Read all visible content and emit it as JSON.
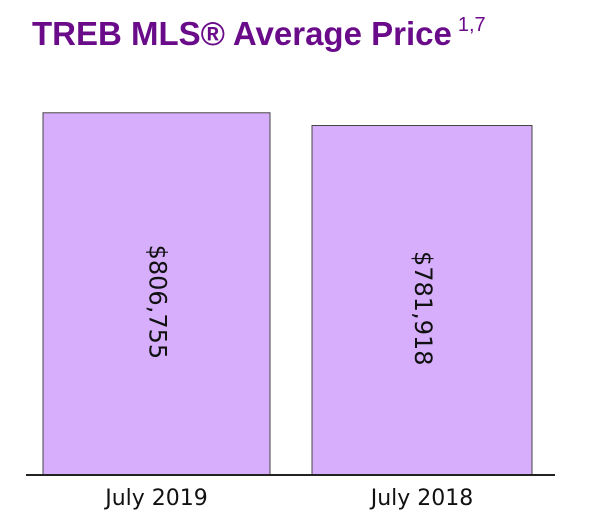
{
  "chart_data": {
    "type": "bar",
    "title": "TREB MLS® Average Price",
    "title_superscript": "1,7",
    "categories": [
      "July 2019",
      "July 2018"
    ],
    "values": [
      806755,
      781918
    ],
    "data_labels": [
      "$806,755",
      "$781,918"
    ],
    "xlabel": "",
    "ylabel": "",
    "ylim": [
      100000,
      900000
    ],
    "grid": false,
    "bar_color": "#d7aefc",
    "title_color": "#6a0c8a"
  }
}
